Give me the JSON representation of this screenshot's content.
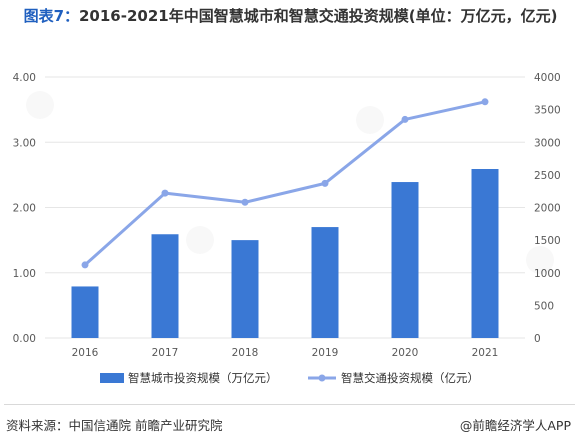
{
  "title": {
    "label": "图表7：",
    "text": "2016-2021年中国智慧城市和智慧交通投资规模(单位：万亿元，亿元)"
  },
  "colors": {
    "bar": "#3a78d4",
    "line": "#8aa6e8",
    "axis_text": "#595959",
    "grid": "#e6e6e6"
  },
  "chart_data": {
    "type": "bar+line",
    "categories": [
      "2016",
      "2017",
      "2018",
      "2019",
      "2020",
      "2021"
    ],
    "series": [
      {
        "name": "智慧城市投资规模（万亿元）",
        "type": "bar",
        "axis": "left",
        "values": [
          0.79,
          1.59,
          1.5,
          1.7,
          2.39,
          2.59
        ]
      },
      {
        "name": "智慧交通投资规模（亿元）",
        "type": "line",
        "axis": "right",
        "values": [
          1120,
          2220,
          2080,
          2370,
          3350,
          3620
        ]
      }
    ],
    "y_left": {
      "range": [
        0,
        4
      ],
      "ticks": [
        "0.00",
        "1.00",
        "2.00",
        "3.00",
        "4.00"
      ]
    },
    "y_right": {
      "range": [
        0,
        4000
      ],
      "ticks": [
        "0",
        "500",
        "1000",
        "1500",
        "2000",
        "2500",
        "3000",
        "3500",
        "4000"
      ]
    },
    "grid": true,
    "legend_position": "bottom"
  },
  "footer": {
    "source": "资料来源：中国信通院 前瞻产业研究院",
    "credit": "@前瞻经济学人APP"
  }
}
